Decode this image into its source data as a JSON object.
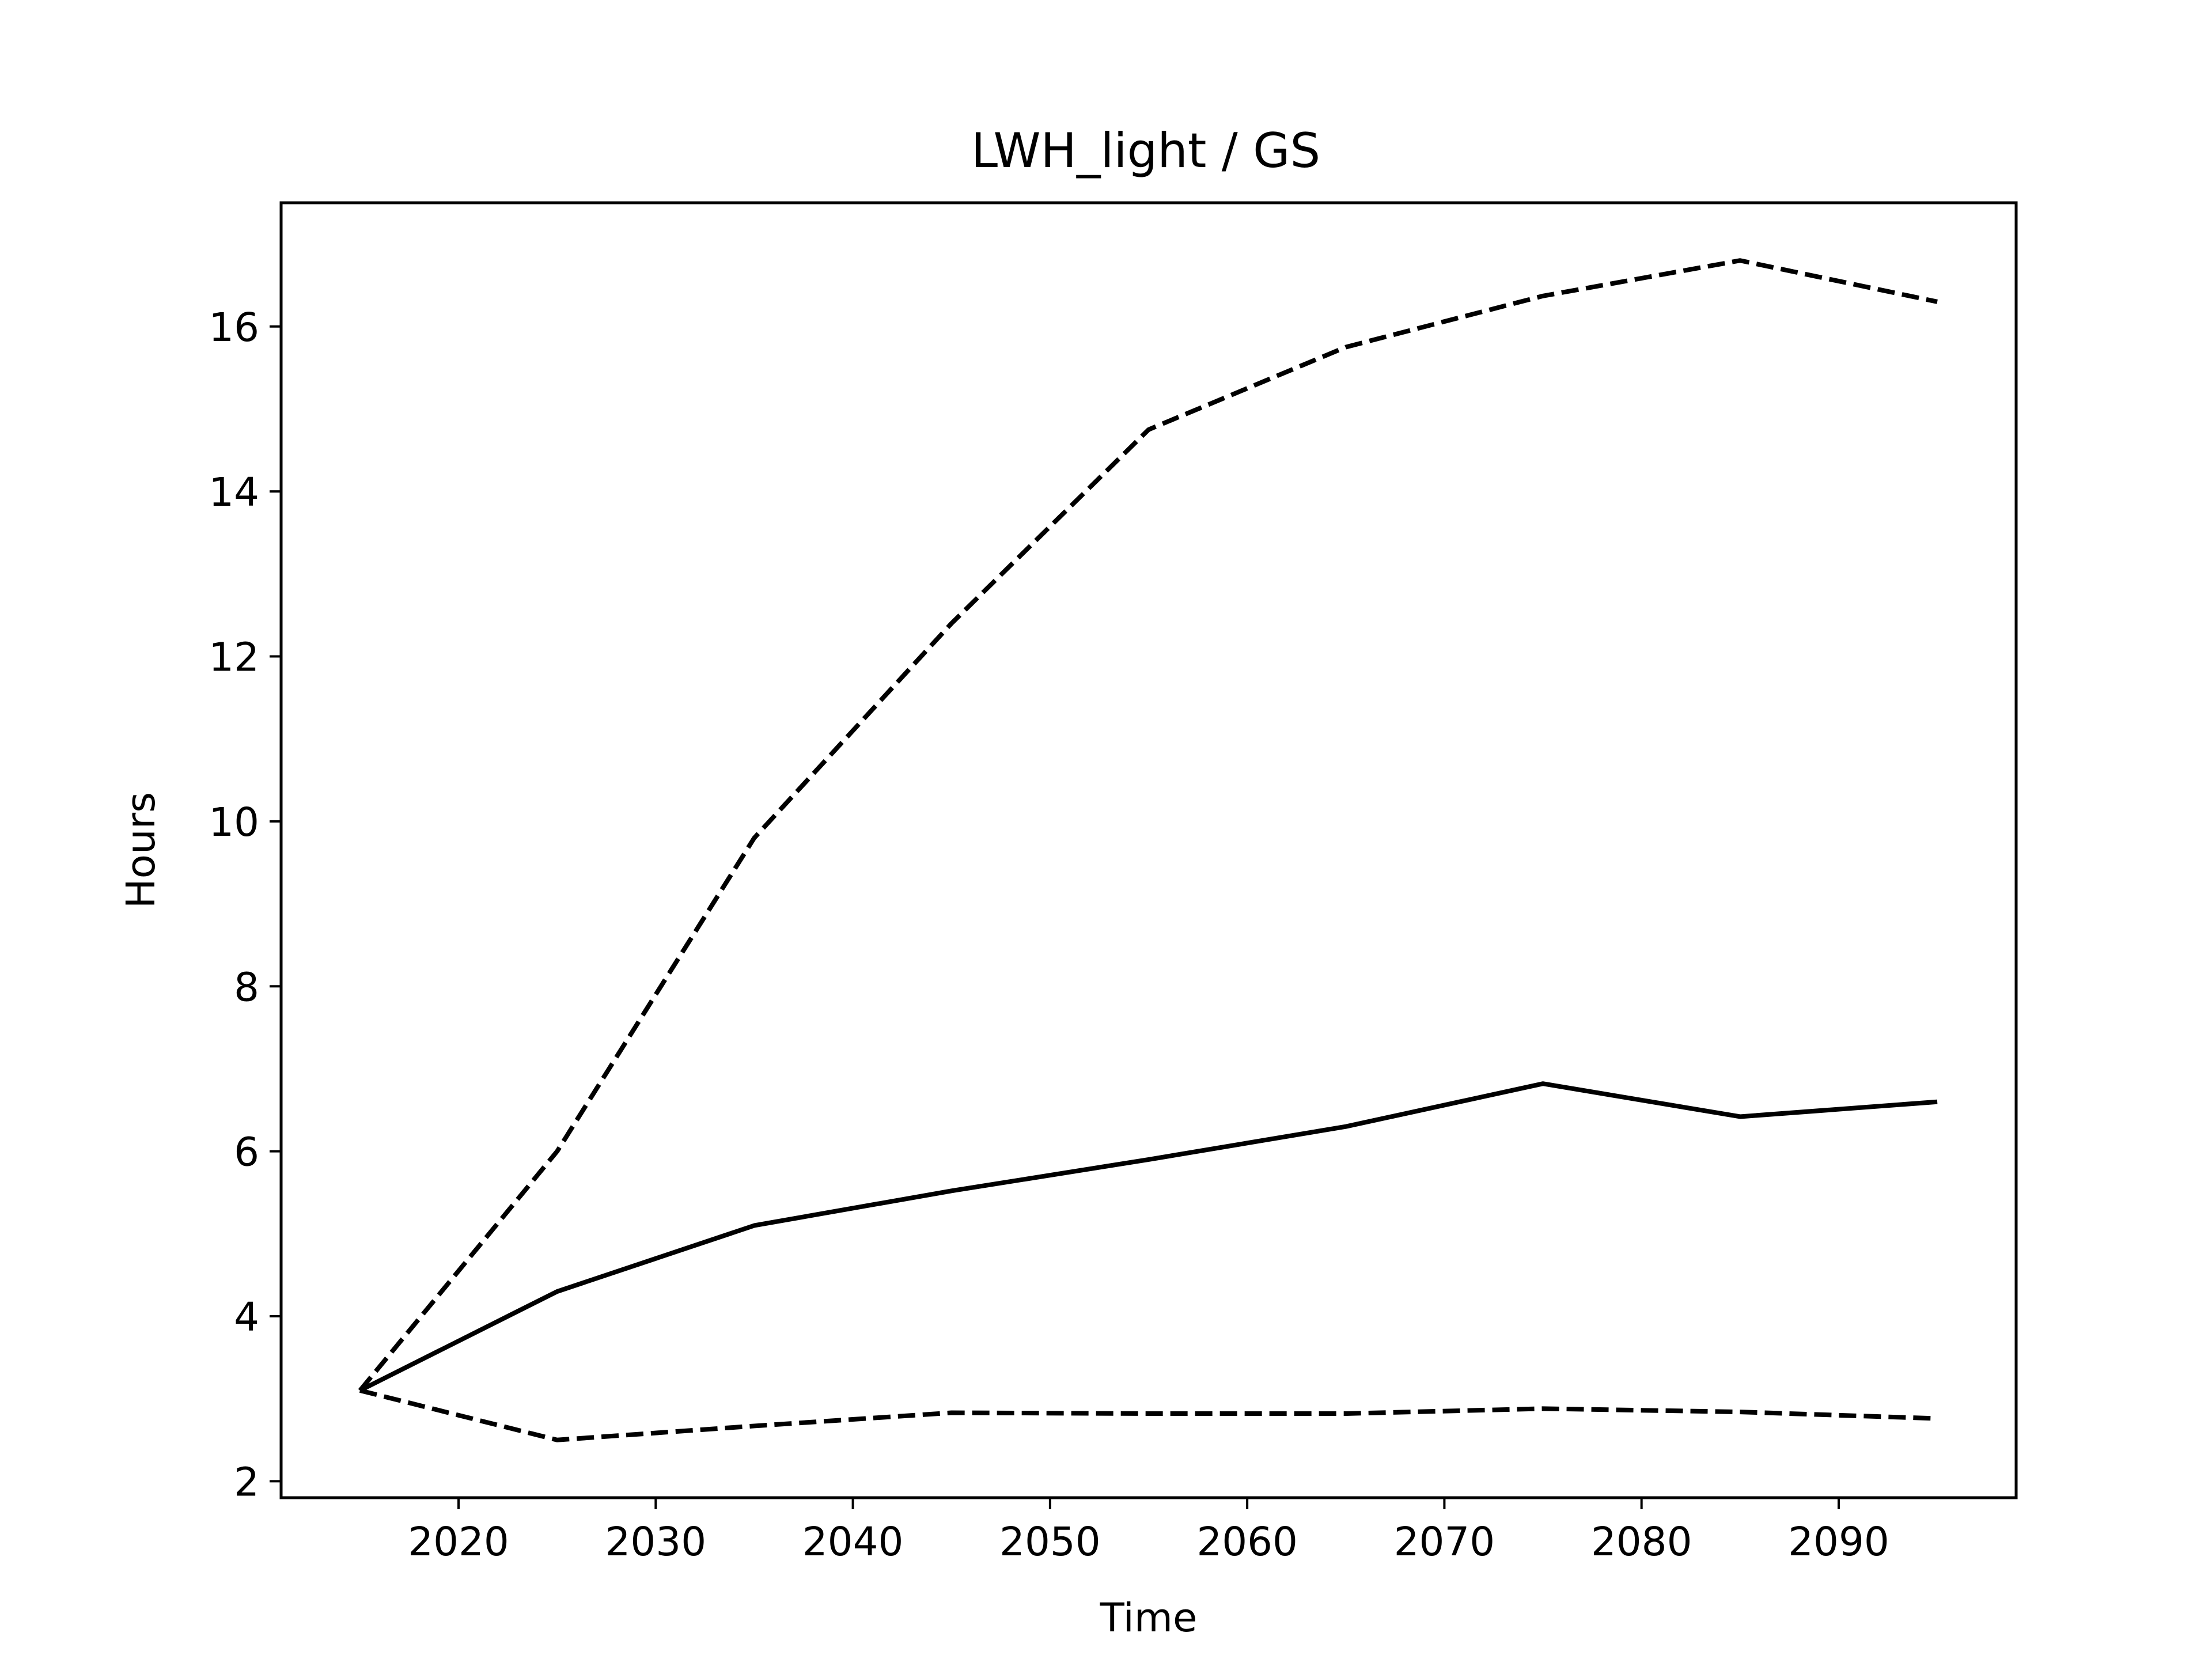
{
  "chart_data": {
    "type": "line",
    "title": "LWH_light / GS",
    "xlabel": "Time",
    "ylabel": "Hours",
    "xlim": [
      2011,
      2099
    ],
    "ylim": [
      1.8,
      17.5
    ],
    "xticks": [
      2020,
      2030,
      2040,
      2050,
      2060,
      2070,
      2080,
      2090
    ],
    "yticks": [
      2,
      4,
      6,
      8,
      10,
      12,
      14,
      16
    ],
    "grid": false,
    "x": [
      2015,
      2025,
      2035,
      2045,
      2055,
      2065,
      2075,
      2085,
      2095
    ],
    "series": [
      {
        "values": [
          3.1,
          4.3,
          5.1,
          5.52,
          5.9,
          6.3,
          6.82,
          6.42,
          6.6
        ],
        "style": "solid",
        "color": "#000000"
      },
      {
        "values": [
          3.1,
          6.0,
          9.8,
          12.4,
          14.75,
          15.75,
          16.37,
          16.8,
          16.3
        ],
        "style": "dashed",
        "color": "#000000"
      },
      {
        "values": [
          3.1,
          2.5,
          2.67,
          2.83,
          2.82,
          2.82,
          2.88,
          2.84,
          2.76
        ],
        "style": "dashed",
        "color": "#000000"
      }
    ]
  }
}
